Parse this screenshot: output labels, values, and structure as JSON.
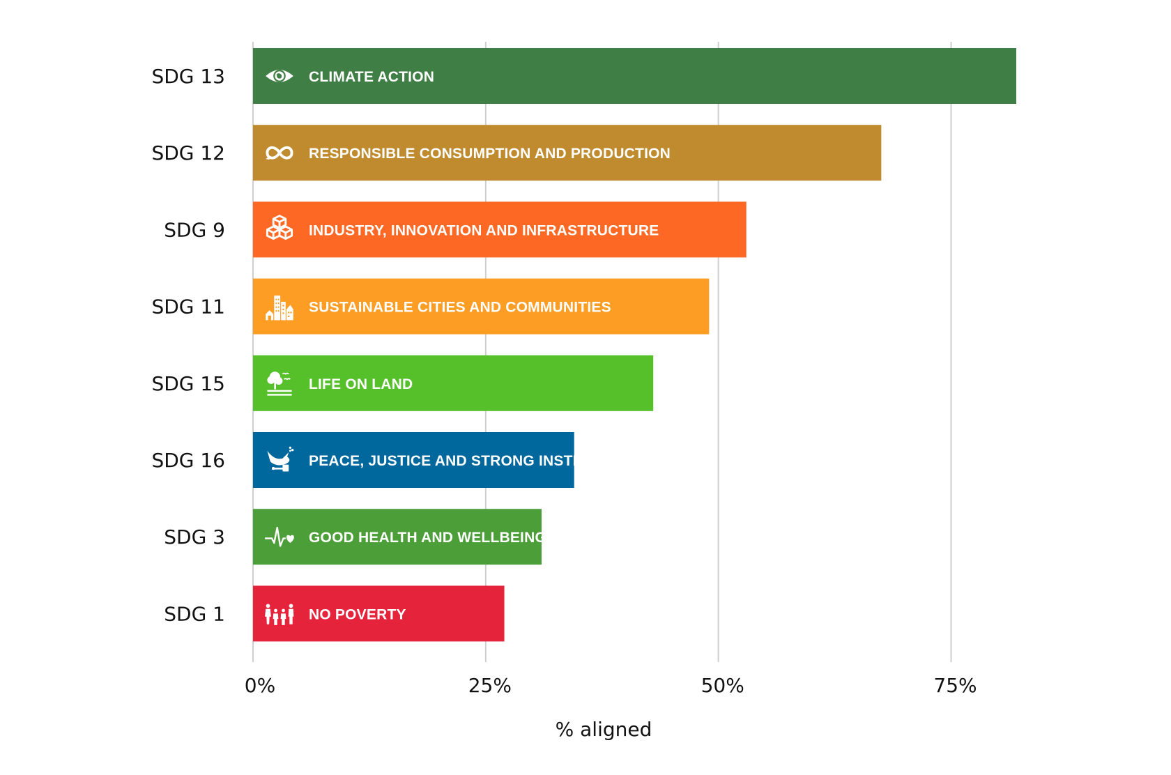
{
  "chart_data": {
    "type": "bar",
    "orientation": "horizontal",
    "categories": [
      "SDG 13",
      "SDG 12",
      "SDG 9",
      "SDG 11",
      "SDG 15",
      "SDG 16",
      "SDG 3",
      "SDG 1"
    ],
    "bar_labels": [
      "CLIMATE ACTION",
      "RESPONSIBLE CONSUMPTION AND PRODUCTION",
      "INDUSTRY, INNOVATION AND INFRASTRUCTURE",
      "SUSTAINABLE CITIES AND COMMUNITIES",
      "LIFE ON LAND",
      "PEACE, JUSTICE AND STRONG INSTITUTIONS",
      "GOOD HEALTH AND WELLBEING",
      "NO POVERTY"
    ],
    "icons": [
      "eye-globe-icon",
      "infinity-icon",
      "cubes-icon",
      "city-icon",
      "tree-bird-icon",
      "dove-gavel-icon",
      "heartbeat-icon",
      "family-icon"
    ],
    "values": [
      82,
      67.5,
      53,
      49,
      43,
      34.5,
      31,
      27
    ],
    "colors": [
      "#3f7e44",
      "#bf8b2e",
      "#fd6925",
      "#fd9d24",
      "#56c02b",
      "#00689d",
      "#4c9f38",
      "#e5243b"
    ],
    "xlim": [
      0,
      82
    ],
    "xticks": [
      0,
      25,
      50,
      75
    ],
    "xtick_labels": [
      "0%",
      "25%",
      "50%",
      "75%"
    ],
    "xlabel": "% aligned",
    "ylabel": "",
    "title": "",
    "grid": true
  }
}
